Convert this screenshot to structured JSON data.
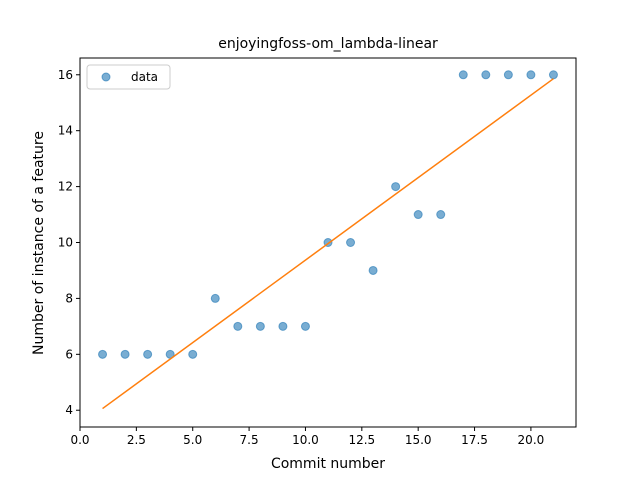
{
  "chart_data": {
    "type": "scatter",
    "title": "enjoyingfoss-om_lambda-linear",
    "xlabel": "Commit number",
    "ylabel": "Number of instance of a feature",
    "xlim": [
      0.0,
      22.0
    ],
    "ylim": [
      3.4,
      16.6
    ],
    "xticks": [
      0.0,
      2.5,
      5.0,
      7.5,
      10.0,
      12.5,
      15.0,
      17.5,
      20.0
    ],
    "xtick_labels": [
      "0.0",
      "2.5",
      "5.0",
      "7.5",
      "10.0",
      "12.5",
      "15.0",
      "17.5",
      "20.0"
    ],
    "yticks": [
      4,
      6,
      8,
      10,
      12,
      14,
      16
    ],
    "ytick_labels": [
      "4",
      "6",
      "8",
      "10",
      "12",
      "14",
      "16"
    ],
    "grid": false,
    "legend_position": "upper-left",
    "series": [
      {
        "name": "data",
        "kind": "scatter",
        "color": "#1f77b4",
        "x": [
          1,
          2,
          3,
          4,
          5,
          6,
          7,
          8,
          9,
          10,
          11,
          12,
          13,
          14,
          15,
          16,
          17,
          18,
          19,
          20,
          21
        ],
        "y": [
          6,
          6,
          6,
          6,
          6,
          8,
          7,
          7,
          7,
          7,
          10,
          10,
          9,
          12,
          11,
          11,
          16,
          16,
          16,
          16,
          16
        ]
      },
      {
        "kind": "line",
        "color": "#ff7f0e",
        "x": [
          1,
          21
        ],
        "y": [
          4.06,
          15.86
        ]
      }
    ]
  }
}
